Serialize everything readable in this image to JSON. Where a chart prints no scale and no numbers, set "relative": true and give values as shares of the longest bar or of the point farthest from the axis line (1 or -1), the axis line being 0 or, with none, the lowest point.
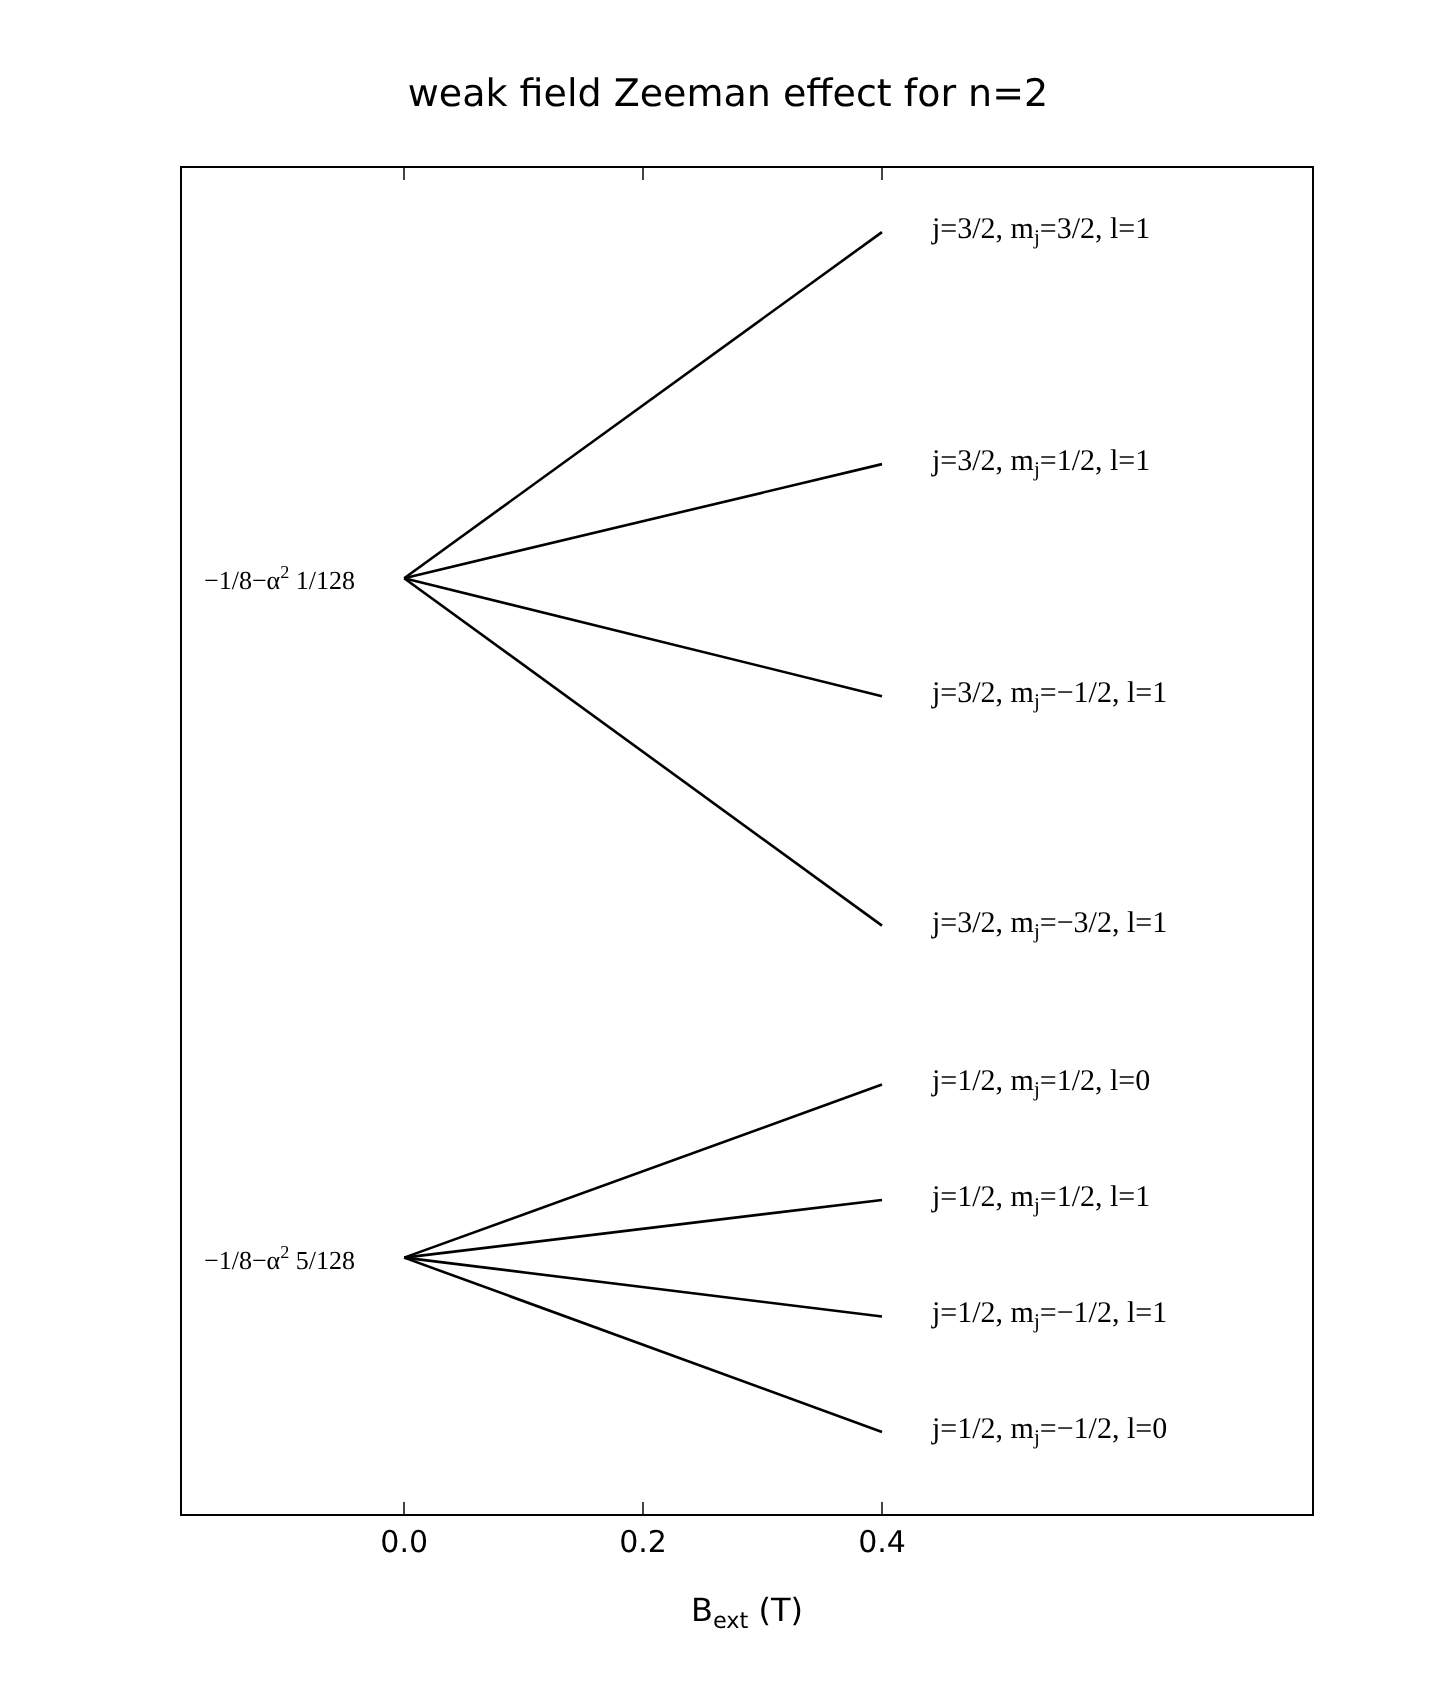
{
  "chart_data": {
    "type": "line",
    "title": "weak field Zeeman effect for n=2",
    "xlabel": "B$_{ext}$ (T)",
    "relative": true,
    "x": [
      0,
      0.4
    ],
    "xlim": [
      -0.186,
      0.76
    ],
    "xticks": [
      {
        "value": 0,
        "label": "0.0"
      },
      {
        "value": 0.2,
        "label": "0.2"
      },
      {
        "value": 0.4,
        "label": "0.4"
      }
    ],
    "series": [
      {
        "name": "j=3/2, m$_{j}$=3/2, l=1",
        "color": "#000000",
        "values": [
          0.73,
          1
        ]
      },
      {
        "name": "j=3/2, m$_{j}$=1/2, l=1",
        "color": "#000000",
        "values": [
          0.73,
          0.819
        ]
      },
      {
        "name": "j=3/2, m$_{j}$=−1/2, l=1",
        "color": "#000000",
        "values": [
          0.73,
          0.638
        ]
      },
      {
        "name": "j=3/2, m$_{j}$=−3/2, l=1",
        "color": "#000000",
        "values": [
          0.73,
          0.459
        ]
      },
      {
        "name": "j=1/2, m$_{j}$=1/2, l=0",
        "color": "#000000",
        "values": [
          0.2,
          0.335
        ]
      },
      {
        "name": "j=1/2, m$_{j}$=1/2, l=1",
        "color": "#000000",
        "values": [
          0.2,
          0.245
        ]
      },
      {
        "name": "j=1/2, m$_{j}$=−1/2, l=1",
        "color": "#000000",
        "values": [
          0.2,
          0.154
        ]
      },
      {
        "name": "j=1/2, m$_{j}$=−1/2, l=0",
        "color": "#000000",
        "values": [
          0.2,
          0.064
        ]
      }
    ],
    "annotations": [
      {
        "text": "−1/8−α$^{2}$ 1/128",
        "x": 0,
        "y": 0.73
      },
      {
        "text": "−1/8−α$^{2}$ 5/128",
        "x": 0,
        "y": 0.2
      }
    ]
  }
}
